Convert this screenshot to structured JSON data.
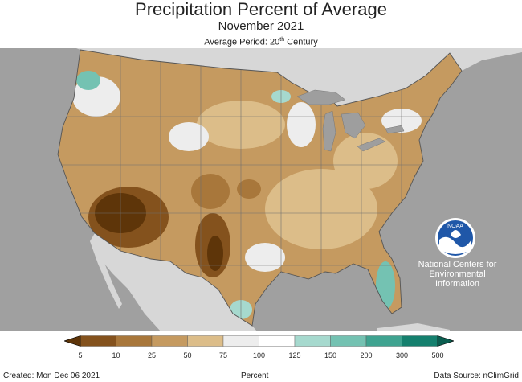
{
  "header": {
    "title": "Precipitation Percent of Average",
    "subtitle": "November 2021",
    "period_prefix": "Average Period: 20",
    "period_sup": "th",
    "period_suffix": " Century"
  },
  "logo": {
    "text": "NOAA",
    "label": "National Centers for Environmental Information"
  },
  "legend": {
    "ticks": [
      "5",
      "10",
      "25",
      "50",
      "75",
      "100",
      "125",
      "150",
      "200",
      "300",
      "500"
    ],
    "colors": [
      "#5e3509",
      "#84521d",
      "#a8773b",
      "#c59a60",
      "#dcbd89",
      "#ededed",
      "#ffffff",
      "#a6d9ce",
      "#74c2b2",
      "#3fa390",
      "#15806e",
      "#0b5e50"
    ],
    "unit": "Percent"
  },
  "footer": {
    "created": "Created: Mon Dec 06 2021",
    "source": "Data Source: nClimGrid"
  },
  "map_colors": {
    "ocean": "#a0a0a0",
    "land_outside": "#d7d7d7",
    "lakes": "#9e9e9e",
    "state_lines": "#6f6f6f"
  }
}
